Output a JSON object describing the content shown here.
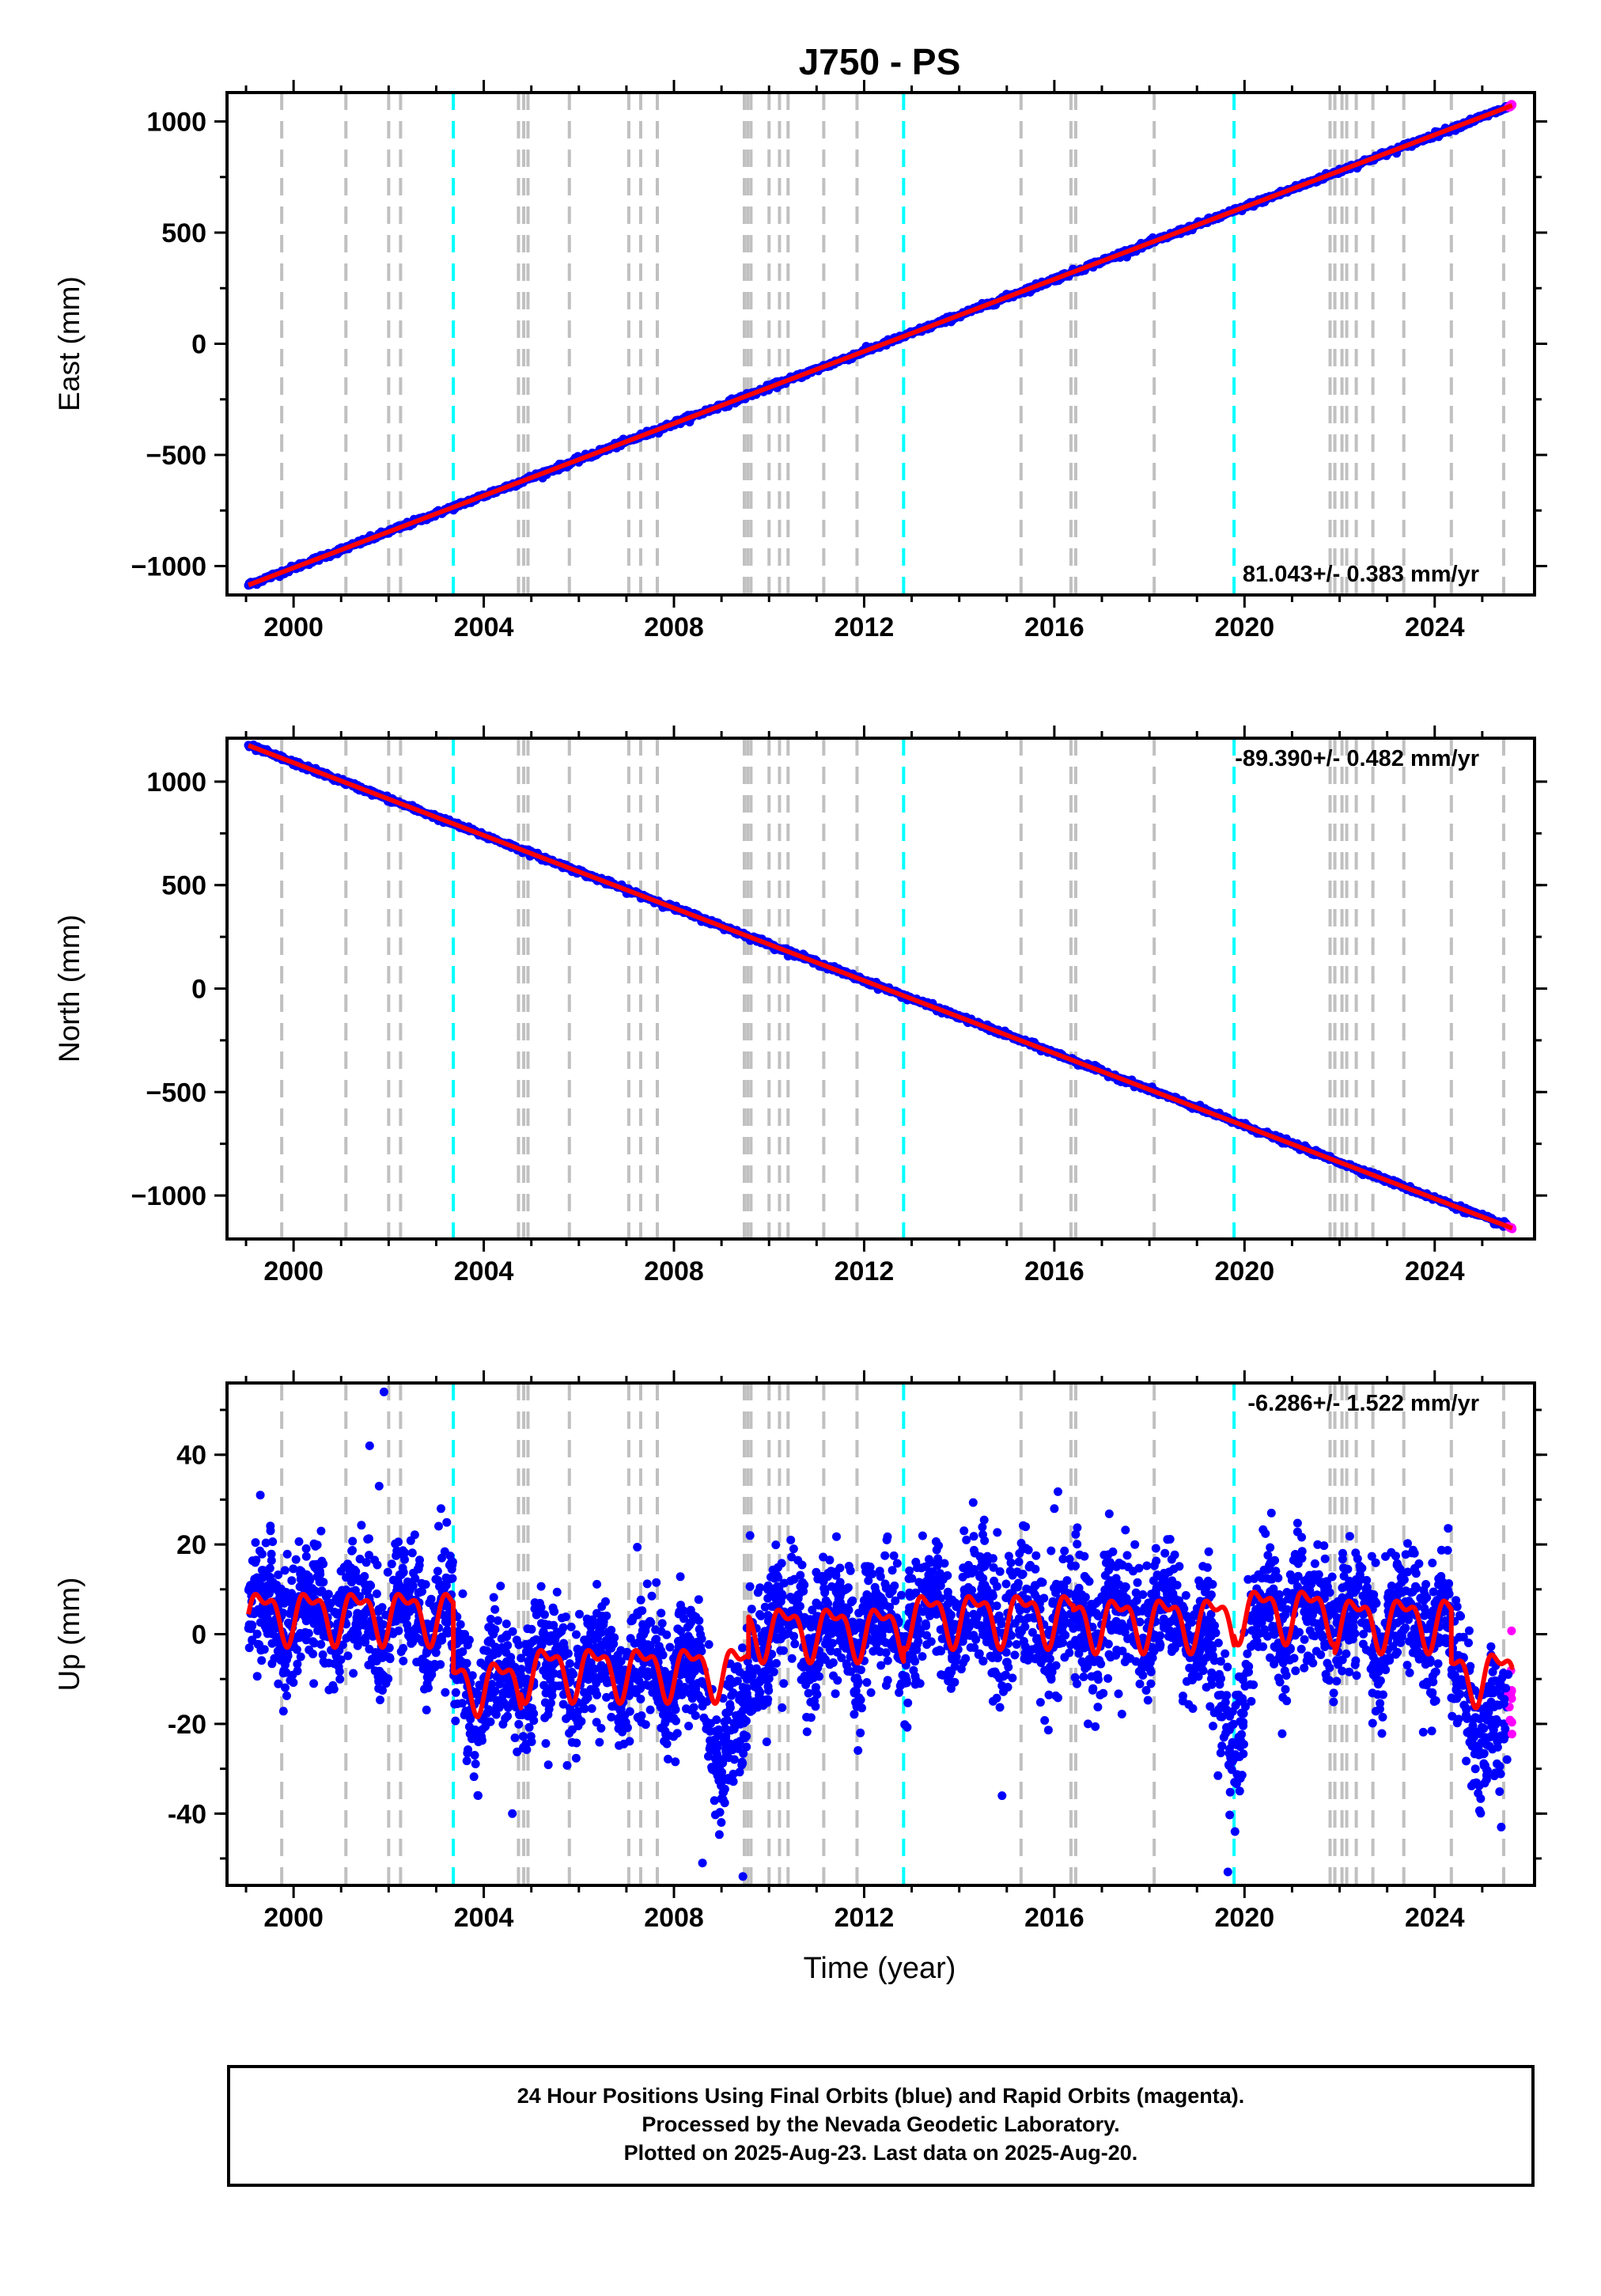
{
  "figure": {
    "title": "J750 - PS",
    "xlabel": "Time (year)"
  },
  "colors": {
    "final_orbits": "#0000ff",
    "rapid_orbits": "#ff00ff",
    "model": "#ff0000",
    "equipment_change": "#c0c0c0",
    "earthquake": "#00ffff"
  },
  "caption": {
    "line1": "24 Hour Positions Using Final Orbits (blue) and Rapid Orbits (magenta).",
    "line2": "Processed by the Nevada Geodetic Laboratory.",
    "line3": "Plotted on 2025-Aug-23. Last data on 2025-Aug-20."
  },
  "chart_data": [
    {
      "type": "scatter",
      "ylabel": "East (mm)",
      "rate_label": "81.043+/- 0.383 mm/yr",
      "xlim": [
        1998.6,
        2026.1
      ],
      "ylim": [
        -1130,
        1130
      ],
      "xticks": [
        2000,
        2004,
        2008,
        2012,
        2016,
        2020,
        2024
      ],
      "yticks": [
        -1000,
        -500,
        0,
        500,
        1000
      ],
      "ytick_labels": [
        "−1000",
        "−500",
        "0",
        "500",
        "1000"
      ],
      "series": [
        {
          "kind": "final_orbits",
          "x_range": [
            1999.05,
            2025.55
          ],
          "start": -1085,
          "end": 1065,
          "scatter_mm": 6
        },
        {
          "kind": "rapid_orbits",
          "x_range": [
            2025.55,
            2025.63
          ],
          "start": 1065,
          "end": 1072,
          "scatter_mm": 3
        },
        {
          "kind": "model",
          "x_range": [
            1999.05,
            2025.63
          ],
          "start": -1085,
          "end": 1072
        }
      ]
    },
    {
      "type": "scatter",
      "ylabel": "North (mm)",
      "rate_label": "-89.390+/- 0.482 mm/yr",
      "xlim": [
        1998.6,
        2026.1
      ],
      "ylim": [
        -1210,
        1210
      ],
      "xticks": [
        2000,
        2004,
        2008,
        2012,
        2016,
        2020,
        2024
      ],
      "yticks": [
        -1000,
        -500,
        0,
        500,
        1000
      ],
      "ytick_labels": [
        "−1000",
        "−500",
        "0",
        "500",
        "1000"
      ],
      "series": [
        {
          "kind": "final_orbits",
          "x_range": [
            1999.05,
            2025.55
          ],
          "start": 1175,
          "end": -1150,
          "scatter_mm": 6
        },
        {
          "kind": "rapid_orbits",
          "x_range": [
            2025.55,
            2025.63
          ],
          "start": -1150,
          "end": -1158,
          "scatter_mm": 3
        },
        {
          "kind": "model",
          "x_range": [
            1999.05,
            2025.63
          ],
          "start": 1175,
          "end": -1158
        }
      ]
    },
    {
      "type": "scatter",
      "ylabel": "Up (mm)",
      "rate_label": "-6.286+/- 1.522 mm/yr",
      "xlim": [
        1998.6,
        2026.1
      ],
      "ylim": [
        -56,
        56
      ],
      "xticks": [
        2000,
        2004,
        2008,
        2012,
        2016,
        2020,
        2024
      ],
      "yticks": [
        -40,
        -20,
        0,
        20,
        40
      ],
      "ytick_labels": [
        "-40",
        "-20",
        "0",
        "20",
        "40"
      ],
      "model_segments": [
        {
          "x_range": [
            1999.05,
            2003.36
          ],
          "offset": 4.5
        },
        {
          "x_range": [
            2003.36,
            2004.78
          ],
          "offset": -11
        },
        {
          "x_range": [
            2004.78,
            2009.57
          ],
          "offset": -8
        },
        {
          "x_range": [
            2009.57,
            2012.83
          ],
          "offset": 1
        },
        {
          "x_range": [
            2012.83,
            2016.4
          ],
          "offset": 4
        },
        {
          "x_range": [
            2016.4,
            2019.78
          ],
          "offset": 3
        },
        {
          "x_range": [
            2019.78,
            2021.9
          ],
          "offset": 5
        },
        {
          "x_range": [
            2021.9,
            2024.35
          ],
          "offset": 3
        },
        {
          "x_range": [
            2024.35,
            2025.63
          ],
          "offset": -9
        }
      ],
      "seasonal_amplitude_mm": 5,
      "scatter_mm": 7,
      "outliers": [
        {
          "x": 2001.9,
          "y": 54
        },
        {
          "x": 2001.6,
          "y": 42
        },
        {
          "x": 2001.8,
          "y": 33
        },
        {
          "x": 1999.3,
          "y": 31
        },
        {
          "x": 2004.6,
          "y": -40
        },
        {
          "x": 2008.6,
          "y": -51
        },
        {
          "x": 2009.45,
          "y": -54
        },
        {
          "x": 2019.65,
          "y": -53
        },
        {
          "x": 2019.8,
          "y": -44
        },
        {
          "x": 2025.4,
          "y": -43
        },
        {
          "x": 2014.9,
          "y": -36
        },
        {
          "x": 2003.1,
          "y": 28
        },
        {
          "x": 2016.0,
          "y": 28
        },
        {
          "x": 2009.6,
          "y": 22
        }
      ],
      "dips": [
        {
          "x": 2009.1,
          "depth": -18,
          "width": 0.5
        },
        {
          "x": 2019.7,
          "depth": -25,
          "width": 0.4
        },
        {
          "x": 2025.2,
          "depth": -14,
          "width": 0.5
        }
      ],
      "rapid_orbits_x_range": [
        2025.55,
        2025.63
      ]
    }
  ],
  "events": {
    "equipment_changes": [
      1999.75,
      2001.1,
      2002.0,
      2002.25,
      2004.73,
      2004.84,
      2004.93,
      2005.8,
      2007.05,
      2007.3,
      2007.65,
      2009.48,
      2009.55,
      2009.62,
      2010.0,
      2010.22,
      2010.4,
      2011.15,
      2011.85,
      2015.3,
      2016.35,
      2016.45,
      2018.1,
      2021.8,
      2021.9,
      2022.05,
      2022.15,
      2022.35,
      2022.7,
      2023.35,
      2024.35,
      2025.45
    ],
    "earthquakes": [
      2003.36,
      2012.83,
      2019.78
    ]
  }
}
